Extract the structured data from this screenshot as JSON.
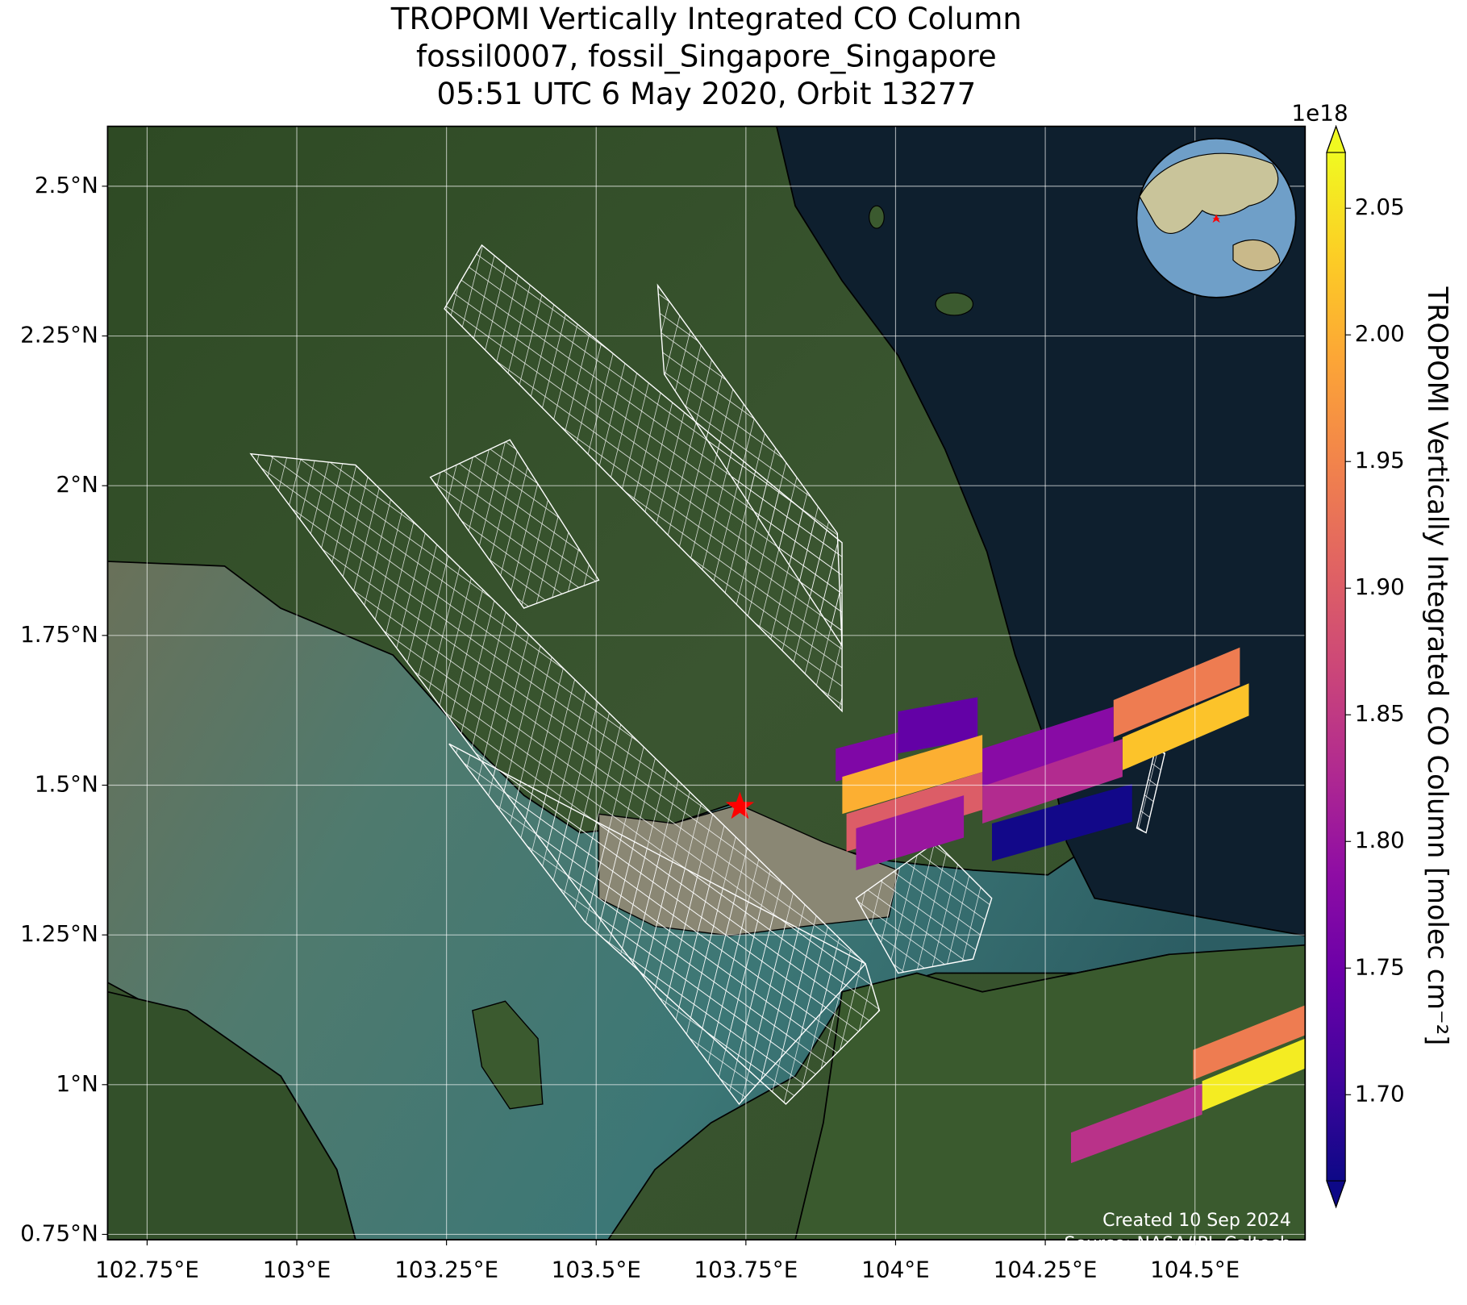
{
  "chart_data": {
    "type": "map",
    "title": [
      "TROPOMI Vertically Integrated CO Column",
      "fossil0007, fossil_Singapore_Singapore",
      "05:51 UTC 6 May 2020, Orbit 13277"
    ],
    "xlim": [
      102.684,
      104.684
    ],
    "ylim": [
      0.741,
      2.6
    ],
    "xticks": [
      {
        "value": 102.75,
        "label": "102.75°E"
      },
      {
        "value": 103,
        "label": "103°E"
      },
      {
        "value": 103.25,
        "label": "103.25°E"
      },
      {
        "value": 103.5,
        "label": "103.5°E"
      },
      {
        "value": 103.75,
        "label": "103.75°E"
      },
      {
        "value": 104,
        "label": "104°E"
      },
      {
        "value": 104.25,
        "label": "104.25°E"
      },
      {
        "value": 104.5,
        "label": "104.5°E"
      }
    ],
    "yticks": [
      {
        "value": 2.5,
        "label": "2.5°N"
      },
      {
        "value": 2.25,
        "label": "2.25°N"
      },
      {
        "value": 2,
        "label": "2°N"
      },
      {
        "value": 1.75,
        "label": "1.75°N"
      },
      {
        "value": 1.5,
        "label": "1.5°N"
      },
      {
        "value": 1.25,
        "label": "1.25°N"
      },
      {
        "value": 1,
        "label": "1°N"
      },
      {
        "value": 0.75,
        "label": "0.75°N"
      }
    ],
    "grid": true,
    "site": {
      "lon": 103.74,
      "lat": 1.464,
      "color": "#ff0000"
    },
    "colorbar": {
      "label": "TROPOMI Vertically Integrated CO Column [molec cm⁻²]",
      "offset_label": "1e18",
      "colormap": "plasma",
      "extend": "both",
      "clim": [
        1.666,
        2.072
      ],
      "ticks": [
        {
          "value": 1.7,
          "label": "1.70"
        },
        1.75,
        {
          "value": 1.8,
          "label": "1.80"
        },
        1.85,
        {
          "value": 1.9,
          "label": "1.90"
        },
        1.95,
        {
          "value": 2.0,
          "label": "2.00"
        },
        2.05
      ]
    },
    "cells": [
      {
        "lon": [
          104.004,
          104.137
        ],
        "lat_top": [
          1.623,
          1.647
        ],
        "lat_bottom": [
          1.553,
          1.577
        ],
        "value": 1.74
      },
      {
        "lon": [
          103.9,
          104.004
        ],
        "lat_top": [
          1.561,
          1.588
        ],
        "lat_bottom": [
          1.506,
          1.533
        ],
        "value": 1.77
      },
      {
        "lon": [
          104.364,
          104.575
        ],
        "lat_top": [
          1.642,
          1.73
        ],
        "lat_bottom": [
          1.58,
          1.667
        ],
        "value": 1.94
      },
      {
        "lon": [
          104.145,
          104.364
        ],
        "lat_top": [
          1.561,
          1.631
        ],
        "lat_bottom": [
          1.498,
          1.569
        ],
        "value": 1.78
      },
      {
        "lon": [
          104.379,
          104.59
        ],
        "lat_top": [
          1.58,
          1.67
        ],
        "lat_bottom": [
          1.525,
          1.616
        ],
        "value": 2.02
      },
      {
        "lon": [
          104.145,
          104.379
        ],
        "lat_top": [
          1.498,
          1.577
        ],
        "lat_bottom": [
          1.436,
          1.514
        ],
        "value": 1.83
      },
      {
        "lon": [
          103.911,
          104.145
        ],
        "lat_top": [
          1.514,
          1.584
        ],
        "lat_bottom": [
          1.452,
          1.522
        ],
        "value": 2.0
      },
      {
        "lon": [
          103.918,
          104.145
        ],
        "lat_top": [
          1.452,
          1.522
        ],
        "lat_bottom": [
          1.389,
          1.459
        ],
        "value": 1.9
      },
      {
        "lon": [
          104.161,
          104.395
        ],
        "lat_top": [
          1.436,
          1.502
        ],
        "lat_bottom": [
          1.373,
          1.439
        ],
        "value": 1.67
      },
      {
        "lon": [
          103.934,
          104.114
        ],
        "lat_top": [
          1.428,
          1.483
        ],
        "lat_bottom": [
          1.358,
          1.4125
        ],
        "value": 1.8
      },
      {
        "lon": [
          104.497,
          104.72
        ],
        "lat_top": [
          1.058,
          1.147
        ],
        "lat_bottom": [
          1.008,
          1.097
        ],
        "value": 1.94
      },
      {
        "lon": [
          104.512,
          104.72
        ],
        "lat_top": [
          1.006,
          1.092
        ],
        "lat_bottom": [
          0.956,
          1.042
        ],
        "value": 2.06
      },
      {
        "lon": [
          104.293,
          104.512
        ],
        "lat_top": [
          0.92,
          1.002
        ],
        "lat_bottom": [
          0.869,
          0.95
        ],
        "value": 1.84
      }
    ],
    "annotations": [
      "Created 10 Sep 2024",
      "Source: NASA/JPL-Caltech"
    ]
  }
}
